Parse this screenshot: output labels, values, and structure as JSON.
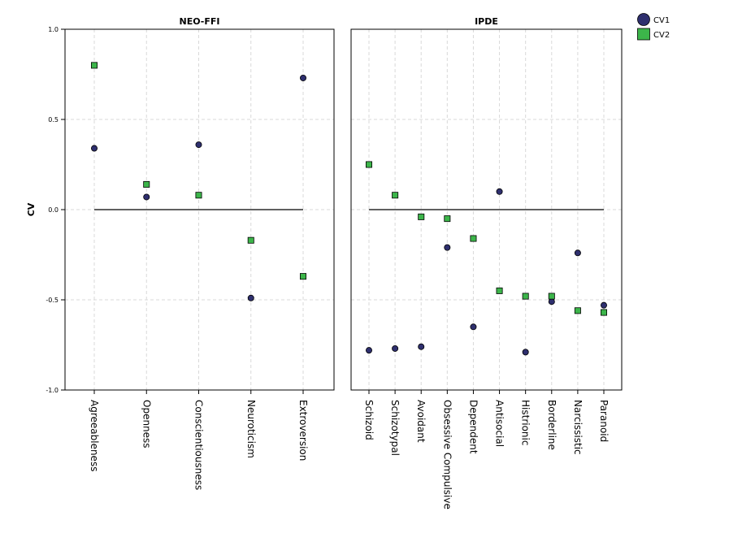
{
  "chart_data": {
    "type": "scatter",
    "ylabel": "CV",
    "ylim": [
      -1.0,
      1.0
    ],
    "yticks": [
      "1.0",
      "0.5",
      "0.0",
      "-0.5",
      "-1.0"
    ],
    "ytick_values": [
      1.0,
      0.5,
      0.0,
      -0.5,
      -1.0
    ],
    "grid": true,
    "legend": "top-right",
    "colors": {
      "CV1": "#2e2f6e",
      "CV2": "#3cb54a"
    },
    "panels": [
      {
        "title": "NEO-FFI",
        "categories": [
          "Agreeableness",
          "Openness",
          "Conscientiousness",
          "Neuroticism",
          "Extroversion"
        ],
        "series": [
          {
            "name": "CV1",
            "marker": "circle",
            "values": [
              0.34,
              0.07,
              0.36,
              -0.49,
              0.73
            ]
          },
          {
            "name": "CV2",
            "marker": "square",
            "values": [
              0.8,
              0.14,
              0.08,
              -0.17,
              -0.37
            ]
          }
        ]
      },
      {
        "title": "IPDE",
        "categories": [
          "Schizoid",
          "Schizotypal",
          "Avoidant",
          "Obsessive Compulsive",
          "Dependent",
          "Antisocial",
          "Histrionic",
          "Borderline",
          "Narcissistic",
          "Paranoid"
        ],
        "series": [
          {
            "name": "CV1",
            "marker": "circle",
            "values": [
              -0.78,
              -0.77,
              -0.76,
              -0.21,
              -0.65,
              0.1,
              -0.79,
              -0.51,
              -0.24,
              -0.53
            ]
          },
          {
            "name": "CV2",
            "marker": "square",
            "values": [
              0.25,
              0.08,
              -0.04,
              -0.05,
              -0.16,
              -0.45,
              -0.48,
              -0.48,
              -0.56,
              -0.57
            ]
          }
        ]
      }
    ],
    "legend_entries": [
      "CV1",
      "CV2"
    ]
  }
}
